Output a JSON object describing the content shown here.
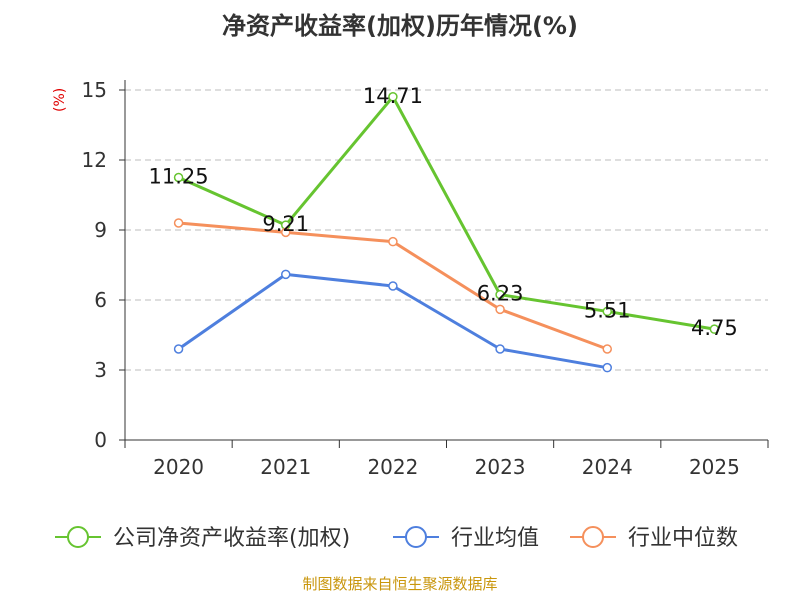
{
  "chart_data": {
    "type": "line",
    "title": "净资产收益率(加权)历年情况(%)",
    "ylabel": "(%)",
    "xlabel": "",
    "categories": [
      "2020",
      "2021",
      "2022",
      "2023",
      "2024",
      "2025"
    ],
    "ylim": [
      0,
      15
    ],
    "yticks": [
      0,
      3,
      6,
      9,
      12,
      15
    ],
    "grid": true,
    "legend_position": "bottom",
    "series": [
      {
        "name": "公司净资产收益率(加权)",
        "color": "#66c430",
        "values": [
          11.25,
          9.21,
          14.71,
          6.23,
          5.51,
          4.75
        ],
        "labels": [
          "11.25",
          "9.21",
          "14.71",
          "6.23",
          "5.51",
          "4.75"
        ],
        "show_labels": true
      },
      {
        "name": "行业均值",
        "color": "#4e7fde",
        "values": [
          3.9,
          7.1,
          6.6,
          3.9,
          3.1,
          null
        ],
        "show_labels": false
      },
      {
        "name": "行业中位数",
        "color": "#f5905c",
        "values": [
          9.3,
          8.9,
          8.5,
          5.6,
          3.9,
          null
        ],
        "show_labels": false
      }
    ]
  },
  "footer": {
    "source": "制图数据来自恒生聚源数据库",
    "source_color": "#c9960c"
  }
}
